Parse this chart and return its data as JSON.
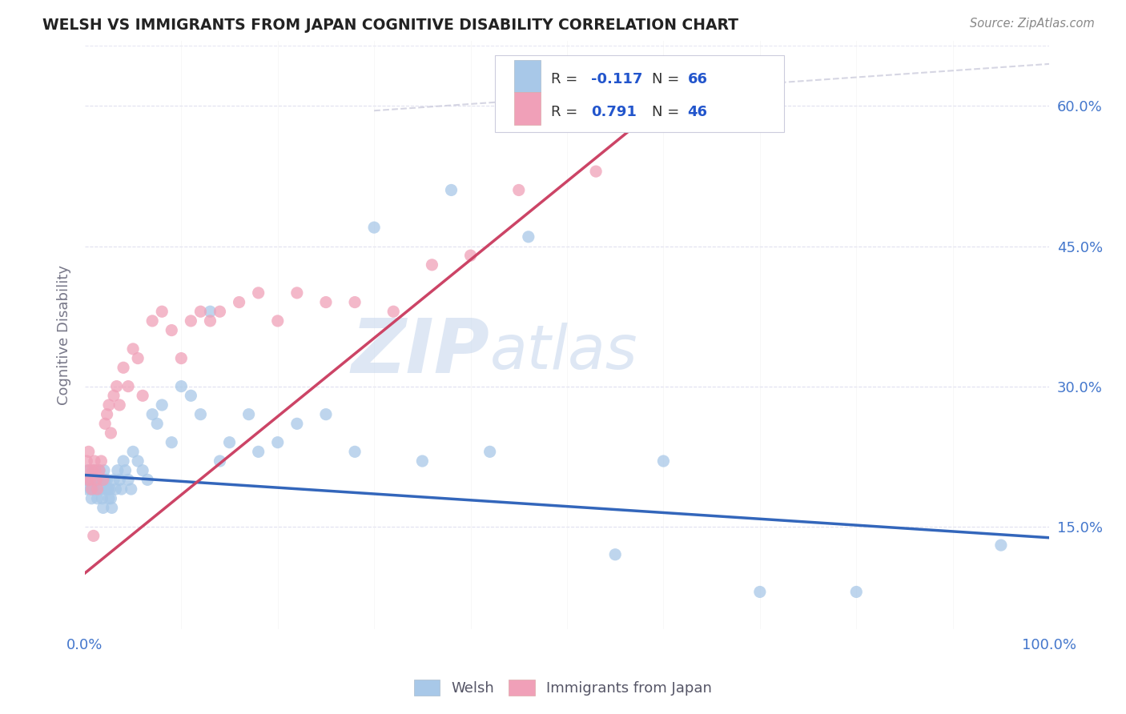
{
  "title": "WELSH VS IMMIGRANTS FROM JAPAN COGNITIVE DISABILITY CORRELATION CHART",
  "source": "Source: ZipAtlas.com",
  "ylabel": "Cognitive Disability",
  "xlim": [
    0.0,
    1.0
  ],
  "ylim": [
    0.04,
    0.67
  ],
  "watermark_zip": "ZIP",
  "watermark_atlas": "atlas",
  "legend_blue_label": "Welsh",
  "legend_pink_label": "Immigrants from Japan",
  "blue_color": "#a8c8e8",
  "pink_color": "#f0a0b8",
  "blue_line_color": "#3366bb",
  "pink_line_color": "#cc4466",
  "diag_line_color": "#ccccdd",
  "background_color": "#ffffff",
  "grid_color": "#ddddee",
  "ytick_positions": [
    0.15,
    0.3,
    0.45,
    0.6
  ],
  "ytick_labels": [
    "15.0%",
    "30.0%",
    "45.0%",
    "60.0%"
  ],
  "welsh_x": [
    0.001,
    0.002,
    0.003,
    0.005,
    0.006,
    0.007,
    0.008,
    0.009,
    0.01,
    0.011,
    0.012,
    0.013,
    0.015,
    0.016,
    0.017,
    0.018,
    0.019,
    0.02,
    0.021,
    0.022,
    0.023,
    0.024,
    0.025,
    0.026,
    0.027,
    0.028,
    0.03,
    0.032,
    0.034,
    0.036,
    0.038,
    0.04,
    0.042,
    0.045,
    0.048,
    0.05,
    0.055,
    0.06,
    0.065,
    0.07,
    0.075,
    0.08,
    0.09,
    0.1,
    0.11,
    0.12,
    0.13,
    0.14,
    0.15,
    0.17,
    0.18,
    0.2,
    0.22,
    0.25,
    0.28,
    0.3,
    0.35,
    0.38,
    0.42,
    0.46,
    0.55,
    0.6,
    0.7,
    0.8,
    0.95
  ],
  "welsh_y": [
    0.2,
    0.19,
    0.21,
    0.2,
    0.19,
    0.18,
    0.2,
    0.19,
    0.21,
    0.2,
    0.19,
    0.18,
    0.21,
    0.2,
    0.19,
    0.18,
    0.17,
    0.21,
    0.2,
    0.19,
    0.2,
    0.19,
    0.18,
    0.19,
    0.18,
    0.17,
    0.2,
    0.19,
    0.21,
    0.2,
    0.19,
    0.22,
    0.21,
    0.2,
    0.19,
    0.23,
    0.22,
    0.21,
    0.2,
    0.27,
    0.26,
    0.28,
    0.24,
    0.3,
    0.29,
    0.27,
    0.38,
    0.22,
    0.24,
    0.27,
    0.23,
    0.24,
    0.26,
    0.27,
    0.23,
    0.47,
    0.22,
    0.51,
    0.23,
    0.46,
    0.12,
    0.22,
    0.08,
    0.08,
    0.13
  ],
  "japan_x": [
    0.002,
    0.003,
    0.004,
    0.005,
    0.006,
    0.007,
    0.008,
    0.009,
    0.01,
    0.011,
    0.012,
    0.013,
    0.015,
    0.017,
    0.019,
    0.021,
    0.023,
    0.025,
    0.027,
    0.03,
    0.033,
    0.036,
    0.04,
    0.045,
    0.05,
    0.055,
    0.06,
    0.07,
    0.08,
    0.09,
    0.1,
    0.11,
    0.12,
    0.13,
    0.14,
    0.16,
    0.18,
    0.2,
    0.22,
    0.25,
    0.28,
    0.32,
    0.36,
    0.4,
    0.45,
    0.53
  ],
  "japan_y": [
    0.22,
    0.2,
    0.23,
    0.21,
    0.2,
    0.19,
    0.21,
    0.14,
    0.22,
    0.21,
    0.2,
    0.19,
    0.21,
    0.22,
    0.2,
    0.26,
    0.27,
    0.28,
    0.25,
    0.29,
    0.3,
    0.28,
    0.32,
    0.3,
    0.34,
    0.33,
    0.29,
    0.37,
    0.38,
    0.36,
    0.33,
    0.37,
    0.38,
    0.37,
    0.38,
    0.39,
    0.4,
    0.37,
    0.4,
    0.39,
    0.39,
    0.38,
    0.43,
    0.44,
    0.51,
    0.53
  ],
  "blue_line_x": [
    0.0,
    1.0
  ],
  "blue_line_y": [
    0.205,
    0.138
  ],
  "pink_line_x": [
    0.0,
    0.62
  ],
  "pink_line_y": [
    0.1,
    0.62
  ],
  "diag_line_x": [
    0.3,
    1.0
  ],
  "diag_line_y": [
    0.595,
    0.645
  ]
}
